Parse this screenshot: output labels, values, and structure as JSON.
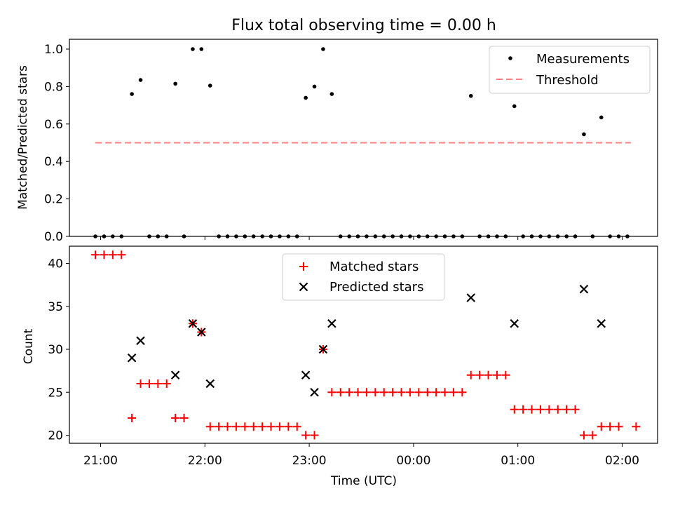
{
  "title": "Flux total observing time = 0.00 h",
  "chart_data": [
    {
      "type": "scatter",
      "ylabel": "Matched/Predicted stars",
      "ylim": [
        0,
        1.05
      ],
      "yticks": [
        "0.0",
        "0.2",
        "0.4",
        "0.6",
        "0.8",
        "1.0"
      ],
      "legend_position": "top-right",
      "threshold": {
        "name": "Threshold",
        "value": 0.5,
        "x_start": "20:57",
        "x_end": "02:05",
        "color": "#ff8080",
        "style": "dashed"
      },
      "series": [
        {
          "name": "Measurements",
          "color": "#000000",
          "points": [
            [
              "20:57",
              0
            ],
            [
              "21:02",
              0
            ],
            [
              "21:07",
              0
            ],
            [
              "21:12",
              0
            ],
            [
              "21:18",
              0.76
            ],
            [
              "21:23",
              0.835
            ],
            [
              "21:28",
              0
            ],
            [
              "21:33",
              0
            ],
            [
              "21:38",
              0
            ],
            [
              "21:43",
              0.815
            ],
            [
              "21:48",
              0
            ],
            [
              "21:53",
              1.0
            ],
            [
              "21:58",
              1.0
            ],
            [
              "22:03",
              0.805
            ],
            [
              "22:08",
              0
            ],
            [
              "22:13",
              0
            ],
            [
              "22:18",
              0
            ],
            [
              "22:23",
              0
            ],
            [
              "22:28",
              0
            ],
            [
              "22:33",
              0
            ],
            [
              "22:38",
              0
            ],
            [
              "22:43",
              0
            ],
            [
              "22:48",
              0
            ],
            [
              "22:53",
              0
            ],
            [
              "22:58",
              0.74
            ],
            [
              "23:03",
              0.8
            ],
            [
              "23:08",
              1.0
            ],
            [
              "23:13",
              0.76
            ],
            [
              "23:18",
              0
            ],
            [
              "23:23",
              0
            ],
            [
              "23:28",
              0
            ],
            [
              "23:33",
              0
            ],
            [
              "23:38",
              0
            ],
            [
              "23:43",
              0
            ],
            [
              "23:48",
              0
            ],
            [
              "23:53",
              0
            ],
            [
              "23:58",
              0
            ],
            [
              "00:03",
              0
            ],
            [
              "00:08",
              0
            ],
            [
              "00:13",
              0
            ],
            [
              "00:18",
              0
            ],
            [
              "00:23",
              0
            ],
            [
              "00:28",
              0
            ],
            [
              "00:33",
              0.75
            ],
            [
              "00:38",
              0
            ],
            [
              "00:43",
              0
            ],
            [
              "00:48",
              0
            ],
            [
              "00:53",
              0
            ],
            [
              "00:58",
              0.695
            ],
            [
              "01:03",
              0
            ],
            [
              "01:08",
              0
            ],
            [
              "01:13",
              0
            ],
            [
              "01:18",
              0
            ],
            [
              "01:23",
              0
            ],
            [
              "01:28",
              0
            ],
            [
              "01:33",
              0
            ],
            [
              "01:38",
              0.545
            ],
            [
              "01:43",
              0
            ],
            [
              "01:48",
              0.635
            ],
            [
              "01:53",
              0
            ],
            [
              "01:58",
              0
            ],
            [
              "02:03",
              0
            ]
          ]
        }
      ]
    },
    {
      "type": "scatter",
      "xlabel": "Time (UTC)",
      "ylabel": "Count",
      "ylim": [
        19,
        42
      ],
      "yticks": [
        "20",
        "25",
        "30",
        "35",
        "40"
      ],
      "xticks": [
        "21:00",
        "22:00",
        "23:00",
        "00:00",
        "01:00",
        "02:00"
      ],
      "legend_position": "top-center",
      "series": [
        {
          "name": "Matched stars",
          "color": "#ff0000",
          "marker": "plus",
          "points": [
            [
              "20:57",
              41
            ],
            [
              "21:02",
              41
            ],
            [
              "21:07",
              41
            ],
            [
              "21:12",
              41
            ],
            [
              "21:18",
              22
            ],
            [
              "21:23",
              26
            ],
            [
              "21:28",
              26
            ],
            [
              "21:33",
              26
            ],
            [
              "21:38",
              26
            ],
            [
              "21:43",
              22
            ],
            [
              "21:48",
              22
            ],
            [
              "21:53",
              33
            ],
            [
              "21:58",
              32
            ],
            [
              "22:03",
              21
            ],
            [
              "22:08",
              21
            ],
            [
              "22:13",
              21
            ],
            [
              "22:18",
              21
            ],
            [
              "22:23",
              21
            ],
            [
              "22:28",
              21
            ],
            [
              "22:33",
              21
            ],
            [
              "22:38",
              21
            ],
            [
              "22:43",
              21
            ],
            [
              "22:48",
              21
            ],
            [
              "22:53",
              21
            ],
            [
              "22:58",
              20
            ],
            [
              "23:03",
              20
            ],
            [
              "23:08",
              30
            ],
            [
              "23:13",
              25
            ],
            [
              "23:18",
              25
            ],
            [
              "23:23",
              25
            ],
            [
              "23:28",
              25
            ],
            [
              "23:33",
              25
            ],
            [
              "23:38",
              25
            ],
            [
              "23:43",
              25
            ],
            [
              "23:48",
              25
            ],
            [
              "23:53",
              25
            ],
            [
              "23:58",
              25
            ],
            [
              "00:03",
              25
            ],
            [
              "00:08",
              25
            ],
            [
              "00:13",
              25
            ],
            [
              "00:18",
              25
            ],
            [
              "00:23",
              25
            ],
            [
              "00:28",
              25
            ],
            [
              "00:33",
              27
            ],
            [
              "00:38",
              27
            ],
            [
              "00:43",
              27
            ],
            [
              "00:48",
              27
            ],
            [
              "00:53",
              27
            ],
            [
              "00:58",
              23
            ],
            [
              "01:03",
              23
            ],
            [
              "01:08",
              23
            ],
            [
              "01:13",
              23
            ],
            [
              "01:18",
              23
            ],
            [
              "01:23",
              23
            ],
            [
              "01:28",
              23
            ],
            [
              "01:33",
              23
            ],
            [
              "01:38",
              20
            ],
            [
              "01:43",
              20
            ],
            [
              "01:48",
              21
            ],
            [
              "01:53",
              21
            ],
            [
              "01:58",
              21
            ],
            [
              "02:08",
              21
            ]
          ]
        },
        {
          "name": "Predicted stars",
          "color": "#000000",
          "marker": "x",
          "points": [
            [
              "21:18",
              29
            ],
            [
              "21:23",
              31
            ],
            [
              "21:43",
              27
            ],
            [
              "21:53",
              33
            ],
            [
              "21:58",
              32
            ],
            [
              "22:03",
              26
            ],
            [
              "22:58",
              27
            ],
            [
              "23:03",
              25
            ],
            [
              "23:08",
              30
            ],
            [
              "23:13",
              33
            ],
            [
              "00:33",
              36
            ],
            [
              "00:58",
              33
            ],
            [
              "01:38",
              37
            ],
            [
              "01:48",
              33
            ]
          ]
        }
      ]
    }
  ]
}
